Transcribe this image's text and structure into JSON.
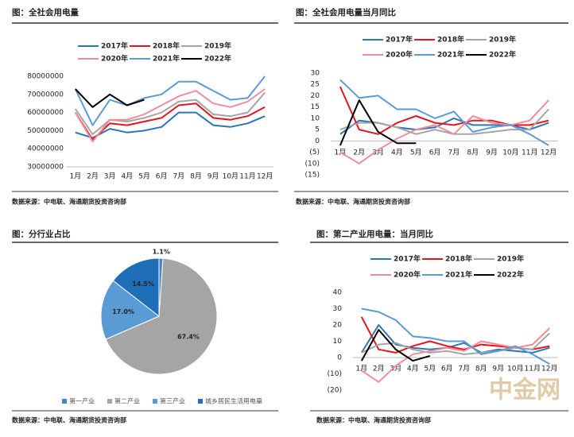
{
  "chart_data": [
    {
      "type": "line",
      "title": "图：全社会用电量",
      "source": "数据来源：中电联、海通期货投资咨询部",
      "categories": [
        "1月",
        "2月",
        "3月",
        "4月",
        "5月",
        "6月",
        "7月",
        "8月",
        "9月",
        "10月",
        "11月",
        "12月"
      ],
      "ylim": [
        30000000,
        80000000
      ],
      "yticks": [
        30000000,
        40000000,
        50000000,
        60000000,
        70000000,
        80000000
      ],
      "series": [
        {
          "name": "2017年",
          "color": "#2e75b6",
          "values": [
            49000000,
            46000000,
            51000000,
            49000000,
            50000000,
            52000000,
            60000000,
            60000000,
            53000000,
            52000000,
            54000000,
            58000000
          ]
        },
        {
          "name": "2018年",
          "color": "#e8141c",
          "values": [
            60000000,
            45000000,
            54000000,
            53000000,
            55000000,
            57000000,
            64000000,
            65000000,
            57000000,
            56000000,
            58000000,
            63000000
          ]
        },
        {
          "name": "2019年",
          "color": "#a5a5a5",
          "values": [
            62000000,
            48000000,
            56000000,
            55000000,
            57000000,
            60000000,
            66000000,
            67000000,
            59000000,
            58000000,
            60000000,
            71000000
          ]
        },
        {
          "name": "2020年",
          "color": "#f08c9c",
          "values": [
            60000000,
            44000000,
            56000000,
            56000000,
            59000000,
            64000000,
            69000000,
            72000000,
            65000000,
            63000000,
            66000000,
            73000000
          ]
        },
        {
          "name": "2021年",
          "color": "#5b9bd5",
          "values": [
            73000000,
            53000000,
            67000000,
            64000000,
            68000000,
            70000000,
            77000000,
            77000000,
            72000000,
            67000000,
            68000000,
            80000000
          ]
        },
        {
          "name": "2022年",
          "color": "#000000",
          "values": [
            73000000,
            63000000,
            70000000,
            64000000,
            67000000,
            null,
            null,
            null,
            null,
            null,
            null,
            null
          ]
        }
      ]
    },
    {
      "type": "line",
      "title": "图：全社会用电量当月同比",
      "source": "数据来源：中电联、海通期货投资咨询部",
      "categories": [
        "1月",
        "2月",
        "3月",
        "4月",
        "5月",
        "6月",
        "7月",
        "8月",
        "9月",
        "10月",
        "11月",
        "12月"
      ],
      "ylim": [
        -15,
        30
      ],
      "yticks": [
        {
          "value": -15,
          "label": "(15)"
        },
        {
          "value": -10,
          "label": "(10)"
        },
        {
          "value": -5,
          "label": "(5)"
        },
        0,
        5,
        10,
        15,
        20,
        25,
        30
      ],
      "series": [
        {
          "name": "2017年",
          "color": "#2e75b6",
          "values": [
            3,
            9,
            8,
            6,
            5,
            6,
            10,
            7,
            7,
            7,
            5,
            8
          ]
        },
        {
          "name": "2018年",
          "color": "#e8141c",
          "values": [
            24,
            5,
            3,
            8,
            11,
            8,
            7,
            9,
            9,
            7,
            7,
            9
          ]
        },
        {
          "name": "2019年",
          "color": "#a5a5a5",
          "values": [
            5,
            8,
            8,
            6,
            3,
            5,
            3,
            3,
            4,
            5,
            5,
            14
          ]
        },
        {
          "name": "2020年",
          "color": "#f08c9c",
          "values": [
            -5,
            -10,
            -4,
            1,
            5,
            7,
            3,
            11,
            8,
            7,
            9,
            18
          ]
        },
        {
          "name": "2021年",
          "color": "#5b9bd5",
          "values": [
            27,
            19,
            20,
            14,
            14,
            10,
            13,
            4,
            6,
            7,
            3,
            -2
          ]
        },
        {
          "name": "2022年",
          "color": "#000000",
          "values": [
            -2,
            18,
            4,
            -1,
            -1,
            null,
            null,
            null,
            null,
            null,
            null,
            null
          ]
        }
      ]
    },
    {
      "type": "pie",
      "title": "图：分行业占比",
      "source": "数据来源：中电联、海通期货投资咨询部",
      "categories": [
        "第一产业",
        "第二产业",
        "第三产业",
        "城乡居民生活用电量"
      ],
      "values": [
        1.1,
        67.4,
        17.0,
        14.5
      ],
      "value_labels": [
        "1.1%",
        "67.4%",
        "17.0%",
        "14.5%"
      ],
      "colors": [
        "#4a86c8",
        "#a5a5a5",
        "#5b9bd5",
        "#1f6fb8"
      ]
    },
    {
      "type": "line",
      "title": "图：第二产业用电量：当月同比",
      "source": "数据来源：中电联、海通期货投资咨询部",
      "categories": [
        "1月",
        "2月",
        "3月",
        "4月",
        "5月",
        "6月",
        "7月",
        "8月",
        "9月",
        "10月",
        "11月",
        "12月"
      ],
      "ylim": [
        -20,
        40
      ],
      "yticks": [
        {
          "value": -20,
          "label": "(20)"
        },
        {
          "value": -10,
          "label": "(10)"
        },
        0,
        10,
        20,
        30,
        40
      ],
      "series": [
        {
          "name": "2017年",
          "color": "#2e75b6",
          "values": [
            3,
            20,
            8,
            6,
            5,
            6,
            9,
            3,
            5,
            4,
            3,
            6
          ]
        },
        {
          "name": "2018年",
          "color": "#e8141c",
          "values": [
            25,
            5,
            3,
            7,
            10,
            7,
            5,
            8,
            7,
            6,
            5,
            7
          ]
        },
        {
          "name": "2019年",
          "color": "#a5a5a5",
          "values": [
            3,
            8,
            9,
            5,
            3,
            4,
            2,
            3,
            4,
            6,
            5,
            15
          ]
        },
        {
          "name": "2020年",
          "color": "#f08c9c",
          "values": [
            -8,
            -15,
            -5,
            2,
            4,
            6,
            4,
            10,
            8,
            6,
            8,
            18
          ]
        },
        {
          "name": "2021年",
          "color": "#5b9bd5",
          "values": [
            30,
            28,
            23,
            13,
            12,
            10,
            10,
            2,
            4,
            7,
            2,
            -4
          ]
        },
        {
          "name": "2022年",
          "color": "#000000",
          "values": [
            -2,
            17,
            5,
            -2,
            1,
            null,
            null,
            null,
            null,
            null,
            null,
            null
          ]
        }
      ]
    }
  ],
  "watermark": "中金网"
}
